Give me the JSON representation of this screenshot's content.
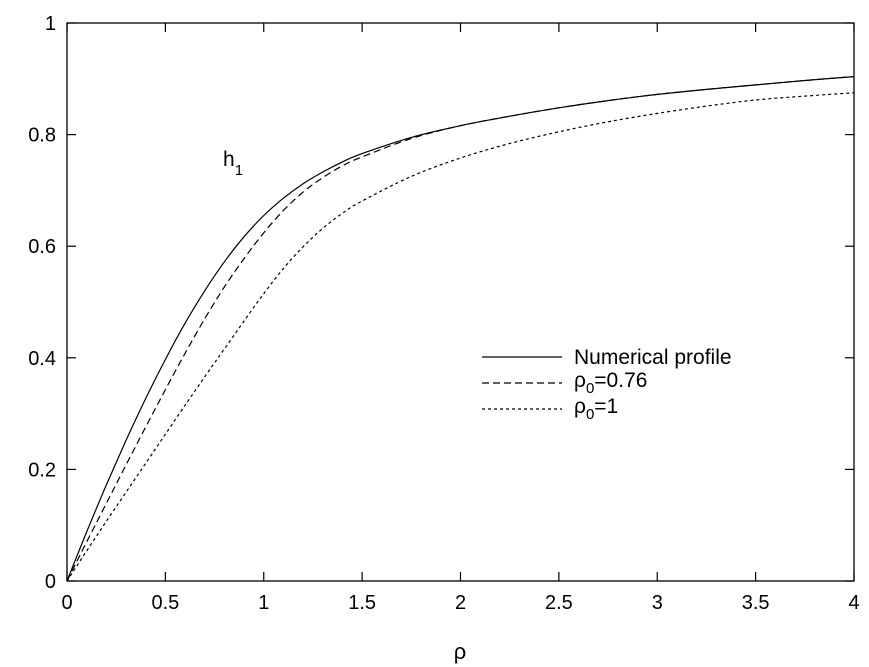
{
  "chart_data": {
    "type": "line",
    "title": "",
    "xlabel": "ρ",
    "ylabel": "",
    "xlim": [
      0,
      4
    ],
    "ylim": [
      0,
      1
    ],
    "xticks": [
      "0",
      "0.5",
      "1",
      "1.5",
      "2",
      "2.5",
      "3",
      "3.5",
      "4"
    ],
    "yticks": [
      "0",
      "0.2",
      "0.4",
      "0.6",
      "0.8",
      "1"
    ],
    "grid": false,
    "legend_position": "right",
    "annotation": {
      "base": "h",
      "subscript": "1"
    },
    "series": [
      {
        "name": "Numerical profile",
        "legend_base": "Numerical profile",
        "legend_sub": "",
        "legend_rest": "",
        "style": "solid",
        "x": [
          0,
          0.1,
          0.2,
          0.3,
          0.4,
          0.5,
          0.6,
          0.7,
          0.8,
          0.9,
          1.0,
          1.1,
          1.2,
          1.3,
          1.4,
          1.5,
          1.75,
          2.0,
          2.25,
          2.5,
          2.75,
          3.0,
          3.25,
          3.5,
          3.75,
          4.0
        ],
        "y": [
          0,
          0.088,
          0.172,
          0.252,
          0.327,
          0.397,
          0.462,
          0.52,
          0.572,
          0.617,
          0.655,
          0.686,
          0.712,
          0.733,
          0.751,
          0.766,
          0.795,
          0.816,
          0.833,
          0.848,
          0.861,
          0.872,
          0.881,
          0.889,
          0.897,
          0.904
        ]
      },
      {
        "name": "ρ0=0.76",
        "legend_base": "ρ",
        "legend_sub": "0",
        "legend_rest": "=0.76",
        "style": "dashed",
        "x": [
          0,
          0.1,
          0.2,
          0.3,
          0.4,
          0.5,
          0.6,
          0.7,
          0.8,
          0.9,
          1.0,
          1.1,
          1.2,
          1.3,
          1.4,
          1.5,
          1.75,
          2.0,
          2.25,
          2.5,
          2.75,
          3.0,
          3.25,
          3.5,
          3.75,
          4.0
        ],
        "y": [
          0,
          0.07,
          0.139,
          0.208,
          0.276,
          0.343,
          0.408,
          0.47,
          0.527,
          0.578,
          0.624,
          0.664,
          0.697,
          0.723,
          0.744,
          0.76,
          0.793,
          0.816,
          0.833,
          0.848,
          0.861,
          0.872,
          0.881,
          0.889,
          0.897,
          0.904
        ]
      },
      {
        "name": "ρ0=1",
        "legend_base": "ρ",
        "legend_sub": "0",
        "legend_rest": "=1",
        "style": "dotted",
        "x": [
          0,
          0.1,
          0.2,
          0.3,
          0.4,
          0.5,
          0.6,
          0.7,
          0.8,
          0.9,
          1.0,
          1.1,
          1.2,
          1.3,
          1.4,
          1.5,
          1.75,
          2.0,
          2.25,
          2.5,
          2.75,
          3.0,
          3.25,
          3.5,
          3.75,
          4.0
        ],
        "y": [
          0,
          0.054,
          0.107,
          0.159,
          0.211,
          0.263,
          0.315,
          0.366,
          0.416,
          0.466,
          0.515,
          0.56,
          0.599,
          0.632,
          0.659,
          0.681,
          0.725,
          0.758,
          0.784,
          0.805,
          0.823,
          0.838,
          0.851,
          0.862,
          0.869,
          0.875
        ]
      }
    ]
  }
}
